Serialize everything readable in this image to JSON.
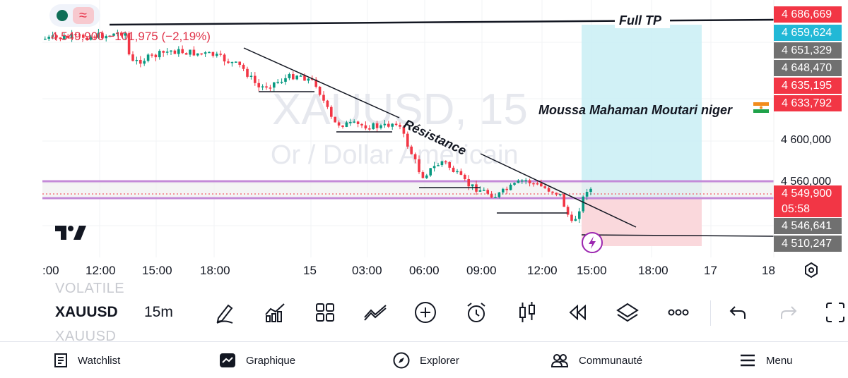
{
  "chart_header": {
    "last_price": "4 549,900",
    "change": "−101,975 (−2,19%)"
  },
  "watermark": {
    "symbol_line": "XAUUSD, 15",
    "desc_line": "Or / Dollar Américain"
  },
  "annotations": {
    "full_tp": "Full TP",
    "resistance": "Résistance",
    "author": "Moussa Mahaman Moutari niger"
  },
  "price_axis": {
    "tags": [
      {
        "label": "4 686,669",
        "color": "#f23645"
      },
      {
        "label": "4 659,624",
        "color": "#22b8d6"
      },
      {
        "label": "4 651,329",
        "color": "#707070"
      },
      {
        "label": "4 648,470",
        "color": "#707070"
      },
      {
        "label": "4 635,195",
        "color": "#f23645"
      },
      {
        "label": "4 633,792",
        "color": "#f23645"
      },
      {
        "label": "4 549,900",
        "color": "#f23645"
      },
      {
        "label": "05:58",
        "color": "#f23645"
      },
      {
        "label": "4 546,641",
        "color": "#707070"
      },
      {
        "label": "4 510,247",
        "color": "#707070"
      }
    ],
    "plain": [
      "4 600,000",
      "4 560,000"
    ]
  },
  "time_axis": {
    "labels": [
      ":00",
      "12:00",
      "15:00",
      "18:00",
      "15",
      "03:00",
      "06:00",
      "09:00",
      "12:00",
      "15:00",
      "18:00",
      "17",
      "18"
    ]
  },
  "toolbar": {
    "symbol": "XAUUSD",
    "interval": "15m",
    "ghost_above": "VOLATILE",
    "ghost_below": "XAUUSD"
  },
  "bottom_nav": {
    "items": [
      {
        "label": "Watchlist",
        "icon": "watchlist-icon"
      },
      {
        "label": "Graphique",
        "icon": "chart-icon"
      },
      {
        "label": "Explorer",
        "icon": "compass-icon"
      },
      {
        "label": "Communauté",
        "icon": "community-icon"
      },
      {
        "label": "Menu",
        "icon": "hamburger-icon"
      }
    ]
  },
  "colors": {
    "bull": "#089981",
    "bear": "#f23645",
    "tp_zone": "#c9eef4",
    "sl_zone": "#f9d4d8",
    "support_line": "#c48ad8"
  }
}
